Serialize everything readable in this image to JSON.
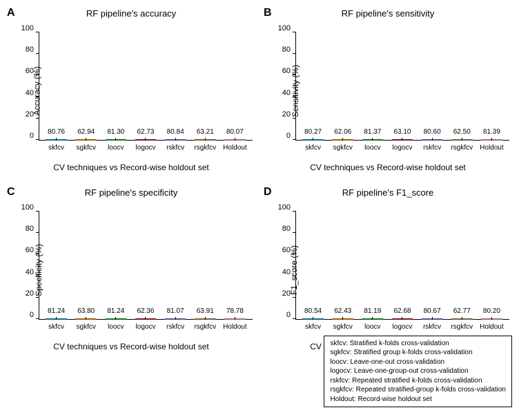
{
  "figure": {
    "background_color": "#ffffff",
    "font_family": "Arial",
    "categories": [
      "skfcv",
      "sgkfcv",
      "loocv",
      "logocv",
      "rskfcv",
      "rsgkfcv",
      "Holdout"
    ],
    "bar_colors": [
      "#1f9fd6",
      "#f28c1c",
      "#1eaa3a",
      "#c6252a",
      "#8a7ecc",
      "#b98a5e",
      "#f0a7cf"
    ],
    "xlabel": "CV techniques vs Record-wise holdout set",
    "ylim": [
      0,
      100
    ],
    "ytick_step": 20,
    "yticks": [
      0,
      20,
      40,
      60,
      80,
      100
    ],
    "bar_width": 0.82,
    "value_label_fontsize": 10,
    "axis_label_fontsize": 12,
    "title_fontsize": 13,
    "tick_fontsize": 11,
    "panels": {
      "A": {
        "tag": "A",
        "title": "RF pipeline's accuracy",
        "ylabel": "Accuracy (%)",
        "values": [
          80.76,
          62.94,
          81.3,
          62.73,
          80.84,
          63.21,
          80.07
        ]
      },
      "B": {
        "tag": "B",
        "title": "RF pipeline's sensitivity",
        "ylabel": "Sensitivity (%)",
        "values": [
          80.27,
          62.06,
          81.37,
          63.1,
          80.6,
          62.5,
          81.39
        ]
      },
      "C": {
        "tag": "C",
        "title": "RF pipeline's specificity",
        "ylabel": "Specificity (%)",
        "values": [
          81.24,
          63.8,
          81.24,
          62.36,
          81.07,
          63.91,
          78.78
        ]
      },
      "D": {
        "tag": "D",
        "title": "RF pipeline's F1_score",
        "ylabel": "F1_score (%)",
        "values": [
          80.54,
          62.43,
          81.19,
          62.68,
          80.67,
          62.77,
          80.2
        ]
      }
    }
  },
  "legend": {
    "lines": [
      "skfcv: Stratified k-folds cross-validation",
      "sgkfcv: Stratified group k-folds cross-validation",
      "loocv: Leave-one-out cross-validation",
      "logocv: Leave-one-group-out cross-validation",
      "rskfcv: Repeated stratified k-folds cross-validation",
      "rsgkfcv: Repeated stratified-group k-folds cross-validation",
      "Holdout: Record-wise holdout set"
    ]
  }
}
